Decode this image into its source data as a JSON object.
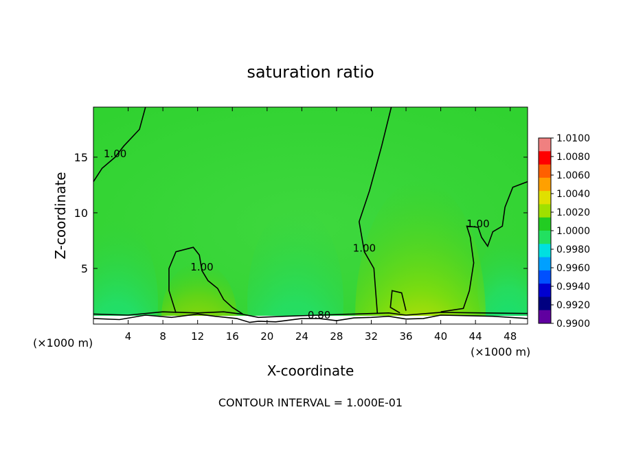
{
  "chart_data": {
    "type": "heatmap",
    "title": "saturation ratio",
    "xlabel": "X-coordinate",
    "ylabel": "Z-coordinate",
    "x_unit": "(×1000 m)",
    "x_unit_right": "(×1000 m)",
    "xlim": [
      0,
      50
    ],
    "ylim": [
      0,
      19.5
    ],
    "x_ticks": [
      4,
      8,
      12,
      16,
      20,
      24,
      28,
      32,
      36,
      40,
      44,
      48
    ],
    "y_ticks": [
      5,
      10,
      15
    ],
    "footer": "CONTOUR INTERVAL = 1.000E-01",
    "colorbar": {
      "levels": [
        "1.0100",
        "1.0080",
        "1.0060",
        "1.0040",
        "1.0020",
        "1.0000",
        "0.9980",
        "0.9960",
        "0.9940",
        "0.9920",
        "0.9900"
      ],
      "colors": [
        "#f08080",
        "#ff0000",
        "#ff6000",
        "#ffa000",
        "#e0e000",
        "#a0e000",
        "#22cc22",
        "#22e060",
        "#00e0e0",
        "#00a0ff",
        "#0050ff",
        "#0000d0",
        "#000080",
        "#6000a0"
      ]
    },
    "contours": [
      {
        "label": "1.00",
        "points": [
          [
            6,
            19.5
          ],
          [
            5.3,
            17.5
          ],
          [
            3.5,
            16
          ],
          [
            2.5,
            15.0
          ],
          [
            1.0,
            14.0
          ],
          [
            0,
            12.8
          ]
        ]
      },
      {
        "label": "1.00",
        "points": [
          [
            34.3,
            19.5
          ],
          [
            33.2,
            16
          ],
          [
            31.8,
            12
          ],
          [
            30.6,
            9.2
          ],
          [
            31.2,
            6.5
          ],
          [
            32.3,
            5
          ],
          [
            32.5,
            3
          ],
          [
            32.7,
            1
          ]
        ]
      },
      {
        "label": "1.00",
        "points": [
          [
            50,
            12.8
          ],
          [
            48.3,
            12.3
          ],
          [
            47.4,
            10.5
          ],
          [
            47.1,
            8.8
          ],
          [
            46.0,
            8.3
          ],
          [
            45.4,
            7.0
          ],
          [
            44.7,
            7.8
          ],
          [
            44.3,
            8.7
          ],
          [
            43.0,
            8.8
          ],
          [
            43.4,
            7.8
          ],
          [
            43.8,
            5.5
          ],
          [
            43.3,
            3.0
          ],
          [
            42.6,
            1.4
          ],
          [
            40.0,
            1.1
          ]
        ]
      },
      {
        "label": "",
        "points": [
          [
            35.3,
            1
          ],
          [
            34.2,
            1.5
          ],
          [
            34.4,
            3
          ],
          [
            35.5,
            2.8
          ],
          [
            36.0,
            1.2
          ]
        ]
      },
      {
        "label": "1.00",
        "points": [
          [
            9.5,
            1
          ],
          [
            8.7,
            3
          ],
          [
            8.7,
            5
          ],
          [
            9.5,
            6.5
          ],
          [
            11.5,
            6.9
          ],
          [
            12.2,
            6.2
          ],
          [
            12.5,
            4.8
          ],
          [
            13.2,
            3.9
          ],
          [
            14.3,
            3.2
          ],
          [
            15.0,
            2.2
          ],
          [
            16.0,
            1.5
          ],
          [
            17.2,
            0.9
          ]
        ]
      },
      {
        "label": "0.80",
        "points": [
          [
            0,
            0.5
          ],
          [
            3,
            0.4
          ],
          [
            6,
            0.8
          ],
          [
            9,
            0.6
          ],
          [
            12,
            0.9
          ],
          [
            14,
            0.7
          ],
          [
            16.5,
            0.5
          ],
          [
            18,
            0.15
          ],
          [
            19,
            0.25
          ],
          [
            21,
            0.2
          ],
          [
            24,
            0.5
          ],
          [
            26,
            0.5
          ],
          [
            28,
            0.3
          ],
          [
            30,
            0.55
          ],
          [
            32,
            0.6
          ],
          [
            34,
            0.7
          ],
          [
            36,
            0.45
          ],
          [
            38,
            0.5
          ],
          [
            40,
            0.8
          ],
          [
            43,
            0.75
          ],
          [
            46,
            0.7
          ],
          [
            50,
            0.5
          ]
        ]
      },
      {
        "label": "",
        "points": [
          [
            0,
            0.9
          ],
          [
            4,
            0.8
          ],
          [
            8,
            1.1
          ],
          [
            12,
            1.0
          ],
          [
            15,
            1.1
          ],
          [
            17,
            0.9
          ],
          [
            19,
            0.6
          ],
          [
            22,
            0.7
          ],
          [
            26,
            0.8
          ],
          [
            30,
            0.9
          ],
          [
            34,
            1.0
          ],
          [
            36,
            0.8
          ],
          [
            40,
            1.05
          ],
          [
            45,
            1.0
          ],
          [
            50,
            0.95
          ]
        ]
      }
    ]
  }
}
